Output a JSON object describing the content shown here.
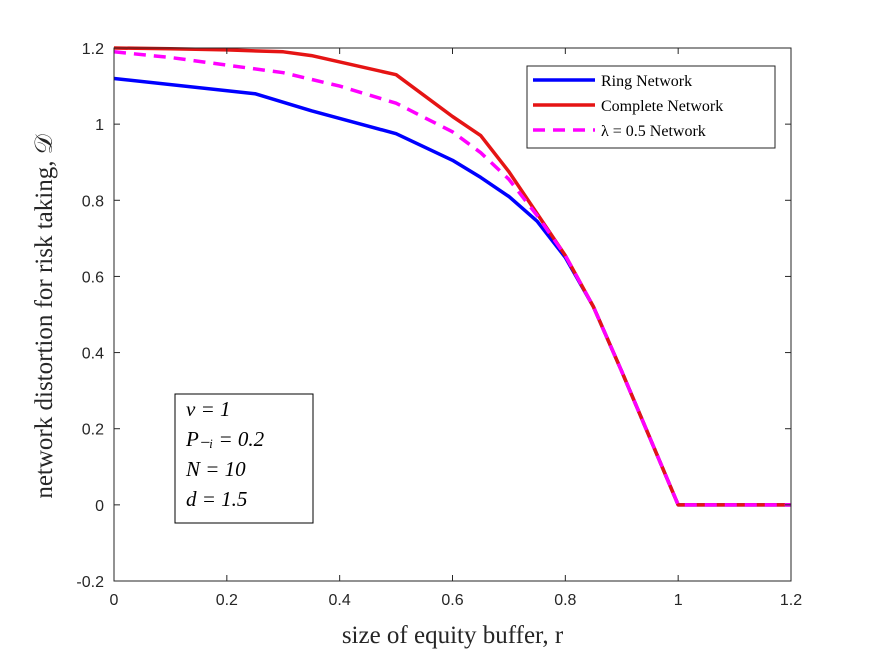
{
  "chart_data": {
    "type": "line",
    "title": "",
    "xlabel": "size of equity buffer, r",
    "ylabel": "network distortion for risk taking, 𝒟",
    "xlim": [
      0,
      1.2
    ],
    "ylim": [
      -0.2,
      1.2
    ],
    "xticks": [
      0,
      0.2,
      0.4,
      0.6,
      0.8,
      1,
      1.2
    ],
    "xtick_labels": [
      "0",
      "0.2",
      "0.4",
      "0.6",
      "0.8",
      "1",
      "1.2"
    ],
    "yticks": [
      -0.2,
      0,
      0.2,
      0.4,
      0.6,
      0.8,
      1,
      1.2
    ],
    "ytick_labels": [
      "-0.2",
      "0",
      "0.2",
      "0.4",
      "0.6",
      "0.8",
      "1",
      "1.2"
    ],
    "grid": false,
    "legend_position": "top-right",
    "series": [
      {
        "name": "Ring Network",
        "color": "#0000ff",
        "style": "solid",
        "x": [
          0,
          0.25,
          0.35,
          0.5,
          0.6,
          0.65,
          0.7,
          0.75,
          0.8,
          0.85,
          0.9,
          0.95,
          1,
          1.2
        ],
        "y": [
          1.12,
          1.08,
          1.035,
          0.975,
          0.905,
          0.86,
          0.81,
          0.745,
          0.65,
          0.52,
          0.35,
          0.175,
          0,
          0
        ]
      },
      {
        "name": "Complete Network",
        "color": "#e51414",
        "style": "solid",
        "x": [
          0,
          0.1,
          0.2,
          0.3,
          0.35,
          0.5,
          0.6,
          0.65,
          0.7,
          0.75,
          0.8,
          0.85,
          0.9,
          0.95,
          1,
          1.2
        ],
        "y": [
          1.2,
          1.198,
          1.195,
          1.19,
          1.18,
          1.13,
          1.02,
          0.97,
          0.875,
          0.765,
          0.655,
          0.52,
          0.35,
          0.175,
          0,
          0
        ]
      },
      {
        "name": "λ = 0.5 Network",
        "color": "#ff00ff",
        "style": "dashed",
        "x": [
          0,
          0.1,
          0.2,
          0.3,
          0.4,
          0.5,
          0.6,
          0.65,
          0.7,
          0.75,
          0.8,
          0.85,
          0.9,
          0.95,
          1,
          1.2
        ],
        "y": [
          1.19,
          1.175,
          1.155,
          1.135,
          1.1,
          1.055,
          0.98,
          0.925,
          0.855,
          0.76,
          0.655,
          0.52,
          0.35,
          0.175,
          0,
          0
        ]
      }
    ],
    "annotation": {
      "lines": [
        "v = 1",
        "P₋ᵢ = 0.2",
        "N = 10",
        "d = 1.5"
      ]
    }
  }
}
